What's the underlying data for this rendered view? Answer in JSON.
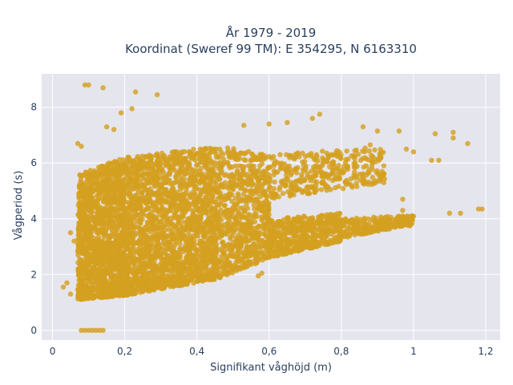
{
  "chart_data": {
    "type": "scatter",
    "title_lines": [
      "År 1979 - 2019",
      "Koordinat (Sweref 99 TM): E 354295, N 6163310"
    ],
    "xlabel": "Signifikant våghöjd (m)",
    "ylabel": "Vågperiod (s)",
    "xlim": [
      -0.03,
      1.24
    ],
    "ylim": [
      -0.35,
      9.2
    ],
    "x_ticks": [
      0,
      0.2,
      0.4,
      0.6,
      0.8,
      1,
      1.2
    ],
    "x_tick_labels": [
      "0",
      "0,2",
      "0,4",
      "0,6",
      "0,8",
      "1",
      "1,2"
    ],
    "y_ticks": [
      0,
      2,
      4,
      6,
      8
    ],
    "y_tick_labels": [
      "0",
      "2",
      "4",
      "6",
      "8"
    ],
    "grid": true,
    "marker_color": "#D4A020",
    "background_color": "#E5E5EE",
    "outliers": [
      {
        "x": 0.09,
        "y": 8.8
      },
      {
        "x": 0.1,
        "y": 8.8
      },
      {
        "x": 0.14,
        "y": 8.7
      },
      {
        "x": 0.23,
        "y": 8.55
      },
      {
        "x": 0.29,
        "y": 8.45
      },
      {
        "x": 0.22,
        "y": 7.95
      },
      {
        "x": 0.19,
        "y": 7.8
      },
      {
        "x": 0.74,
        "y": 7.75
      },
      {
        "x": 0.72,
        "y": 7.6
      },
      {
        "x": 0.86,
        "y": 7.3
      },
      {
        "x": 0.65,
        "y": 7.45
      },
      {
        "x": 0.6,
        "y": 7.4
      },
      {
        "x": 0.53,
        "y": 7.35
      },
      {
        "x": 0.9,
        "y": 7.15
      },
      {
        "x": 0.96,
        "y": 7.15
      },
      {
        "x": 1.06,
        "y": 7.05
      },
      {
        "x": 1.11,
        "y": 7.1
      },
      {
        "x": 1.11,
        "y": 6.9
      },
      {
        "x": 1.15,
        "y": 6.7
      },
      {
        "x": 1.05,
        "y": 6.1
      },
      {
        "x": 1.07,
        "y": 6.1
      },
      {
        "x": 0.88,
        "y": 6.65
      },
      {
        "x": 0.98,
        "y": 6.5
      },
      {
        "x": 1.0,
        "y": 6.4
      },
      {
        "x": 1.1,
        "y": 4.2
      },
      {
        "x": 1.18,
        "y": 4.35
      },
      {
        "x": 1.19,
        "y": 4.35
      },
      {
        "x": 1.13,
        "y": 4.2
      },
      {
        "x": 0.97,
        "y": 4.3
      },
      {
        "x": 0.97,
        "y": 4.7
      },
      {
        "x": 0.95,
        "y": 3.8
      },
      {
        "x": 0.99,
        "y": 3.75
      },
      {
        "x": 0.08,
        "y": 0.0
      },
      {
        "x": 0.09,
        "y": 0.0
      },
      {
        "x": 0.1,
        "y": 0.0
      },
      {
        "x": 0.11,
        "y": 0.0
      },
      {
        "x": 0.12,
        "y": 0.0
      },
      {
        "x": 0.13,
        "y": 0.0
      },
      {
        "x": 0.14,
        "y": 0.0
      },
      {
        "x": 0.03,
        "y": 1.55
      },
      {
        "x": 0.05,
        "y": 1.3
      },
      {
        "x": 0.04,
        "y": 1.7
      },
      {
        "x": 0.06,
        "y": 3.2
      },
      {
        "x": 0.05,
        "y": 3.5
      },
      {
        "x": 0.07,
        "y": 6.7
      },
      {
        "x": 0.08,
        "y": 6.6
      },
      {
        "x": 0.15,
        "y": 7.3
      },
      {
        "x": 0.17,
        "y": 7.2
      },
      {
        "x": 0.57,
        "y": 1.95
      },
      {
        "x": 0.58,
        "y": 2.05
      },
      {
        "x": 0.5,
        "y": 2.2
      }
    ],
    "density_regions": [
      {
        "x_from": 0.07,
        "x_to": 0.2,
        "y_low_from": 1.1,
        "y_low_to": 1.25,
        "y_high_from": 5.6,
        "y_high_to": 6.2,
        "count": 1400
      },
      {
        "x_from": 0.2,
        "x_to": 0.46,
        "y_low_from": 1.25,
        "y_low_to": 1.85,
        "y_high_from": 6.2,
        "y_high_to": 6.6,
        "count": 2000
      },
      {
        "x_from": 0.46,
        "x_to": 0.6,
        "y_low_from": 1.85,
        "y_low_to": 2.6,
        "y_high_from": 6.6,
        "y_high_to": 6.3,
        "count": 700
      },
      {
        "x_from": 0.6,
        "x_to": 0.8,
        "y_low_from": 2.6,
        "y_low_to": 3.2,
        "y_high_from": 4.0,
        "y_high_to": 4.2,
        "count": 500
      },
      {
        "x_from": 0.8,
        "x_to": 1.0,
        "y_low_from": 3.3,
        "y_low_to": 3.8,
        "y_high_from": 4.0,
        "y_high_to": 4.15,
        "count": 250
      },
      {
        "x_from": 0.6,
        "x_to": 0.92,
        "y_low_from": 4.7,
        "y_low_to": 5.3,
        "y_high_from": 6.3,
        "y_high_to": 6.6,
        "count": 350
      }
    ]
  }
}
